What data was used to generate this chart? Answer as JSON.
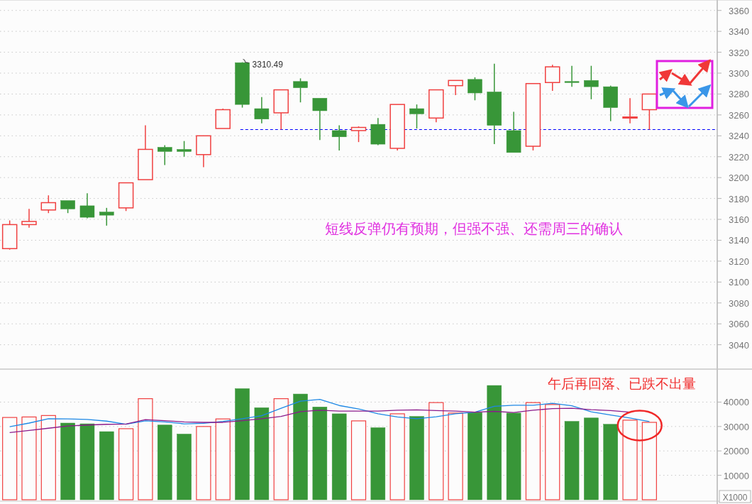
{
  "chart_data": [
    {
      "type": "candlestick",
      "categories": [
        null,
        null,
        null,
        null,
        null,
        null,
        null,
        null,
        null,
        null,
        null,
        null,
        null,
        null,
        null,
        null,
        null,
        null,
        null,
        null,
        null,
        null,
        null,
        null,
        null,
        null,
        null,
        null,
        null,
        null,
        null,
        null,
        null,
        null,
        null,
        null,
        null
      ],
      "ohlc": [
        [
          3132,
          3159,
          3131,
          3155
        ],
        [
          3155,
          3170,
          3152,
          3158
        ],
        [
          3169,
          3183,
          3166,
          3176
        ],
        [
          3178,
          3178,
          3166,
          3170
        ],
        [
          3173,
          3185,
          3161,
          3162
        ],
        [
          3167,
          3171,
          3154,
          3164
        ],
        [
          3171,
          3195,
          3168,
          3195
        ],
        [
          3198,
          3250,
          3198,
          3227
        ],
        [
          3229,
          3231,
          3212,
          3225
        ],
        [
          3227,
          3235,
          3220,
          3225
        ],
        [
          3222,
          3240,
          3210,
          3240
        ],
        [
          3247,
          3266,
          3247,
          3265
        ],
        [
          3310,
          3310.49,
          3267,
          3270
        ],
        [
          3266,
          3277,
          3252,
          3256
        ],
        [
          3262,
          3284,
          3246,
          3284
        ],
        [
          3292,
          3295,
          3272,
          3286
        ],
        [
          3276,
          3276,
          3236,
          3264
        ],
        [
          3245,
          3250,
          3226,
          3239
        ],
        [
          3245,
          3249,
          3234,
          3248
        ],
        [
          3251,
          3257,
          3231,
          3232
        ],
        [
          3228,
          3270,
          3226,
          3270
        ],
        [
          3266,
          3270,
          3247,
          3261
        ],
        [
          3257,
          3284,
          3253,
          3284
        ],
        [
          3288,
          3293,
          3279,
          3293
        ],
        [
          3294,
          3296,
          3274,
          3281
        ],
        [
          3282,
          3309,
          3232,
          3250
        ],
        [
          3245,
          3263,
          3224,
          3224
        ],
        [
          3230,
          3290,
          3226,
          3290
        ],
        [
          3291,
          3308,
          3283,
          3306
        ],
        [
          3292,
          3307,
          3287,
          3291
        ],
        [
          3293,
          3307,
          3275,
          3287
        ],
        [
          3287,
          3288,
          3254,
          3267
        ],
        [
          3257,
          3276,
          3252,
          3258
        ],
        [
          3265,
          3280,
          3246,
          3280
        ],
        null,
        null,
        null
      ],
      "colors": [
        "#f04040",
        "#f04040",
        "#f04040",
        "#389638",
        "#389638",
        "#389638",
        "#f04040",
        "#f04040",
        "#389638",
        "#389638",
        "#f04040",
        "#f04040",
        "#389638",
        "#389638",
        "#f04040",
        "#389638",
        "#389638",
        "#389638",
        "#f04040",
        "#389638",
        "#f04040",
        "#389638",
        "#f04040",
        "#f04040",
        "#389638",
        "#389638",
        "#389638",
        "#f04040",
        "#f04040",
        "#389638",
        "#389638",
        "#389638",
        "#f04040",
        "#f04040",
        null,
        null,
        null
      ],
      "ylim": [
        3018,
        3370
      ],
      "yticks": [
        3040,
        3060,
        3080,
        3100,
        3120,
        3140,
        3160,
        3180,
        3200,
        3220,
        3240,
        3260,
        3280,
        3300,
        3320,
        3340,
        3360
      ],
      "grid": "y",
      "tick_labels": "y",
      "ref_lines": [
        {
          "axis": "y",
          "value": 3246,
          "color": "#0000ff",
          "line_style": "dashed"
        }
      ],
      "annotations": [
        "3310.49",
        "短线反弹仍有预期，但强不强、还需周三的确认"
      ]
    },
    {
      "type": "bar",
      "categories": [
        null,
        null,
        null,
        null,
        null,
        null,
        null,
        null,
        null,
        null,
        null,
        null,
        null,
        null,
        null,
        null,
        null,
        null,
        null,
        null,
        null,
        null,
        null,
        null,
        null,
        null,
        null,
        null,
        null,
        null,
        null,
        null,
        null,
        null,
        null,
        null,
        null
      ],
      "series": [
        {
          "type": "bar",
          "values": [
            33700,
            33900,
            34500,
            31400,
            31100,
            27900,
            29100,
            41400,
            30600,
            26900,
            30000,
            33100,
            45500,
            37700,
            41400,
            43300,
            38000,
            35200,
            32300,
            29500,
            35200,
            34100,
            39800,
            35500,
            35700,
            46800,
            35500,
            39800,
            39000,
            32100,
            33500,
            30900,
            32600,
            31700,
            null,
            null,
            null
          ],
          "colors": [
            "#f04040",
            "#f04040",
            "#f04040",
            "#389638",
            "#389638",
            "#389638",
            "#f04040",
            "#f04040",
            "#389638",
            "#389638",
            "#f04040",
            "#f04040",
            "#389638",
            "#389638",
            "#f04040",
            "#389638",
            "#389638",
            "#389638",
            "#f04040",
            "#389638",
            "#f04040",
            "#389638",
            "#f04040",
            "#f04040",
            "#389638",
            "#389638",
            "#389638",
            "#f04040",
            "#f04040",
            "#389638",
            "#389638",
            "#389638",
            "#f04040",
            "#f04040",
            null,
            null,
            null
          ]
        },
        {
          "type": "line",
          "color": "#1e88e5",
          "values": [
            29900,
            31400,
            33200,
            33100,
            32900,
            32200,
            30900,
            32300,
            31900,
            31100,
            31300,
            32100,
            33200,
            34400,
            37500,
            40400,
            41100,
            38600,
            37200,
            35200,
            33900,
            33200,
            34000,
            35200,
            35900,
            38300,
            38700,
            38700,
            39500,
            38500,
            36000,
            34700,
            33500,
            32000,
            null,
            null,
            null
          ]
        },
        {
          "type": "line",
          "color": "#8b1a8b",
          "values": [
            27500,
            28400,
            29300,
            30200,
            30600,
            30900,
            31000,
            32800,
            32400,
            31900,
            31700,
            31700,
            32400,
            33200,
            34100,
            36100,
            36700,
            36300,
            36300,
            36300,
            36700,
            36800,
            36500,
            36300,
            35900,
            36200,
            35700,
            36700,
            37300,
            37500,
            36900,
            36500,
            35900,
            null,
            null,
            null,
            null
          ]
        }
      ],
      "ylim": [
        0,
        53500
      ],
      "yticks": [
        10000,
        20000,
        30000,
        40000
      ],
      "grid": "y",
      "tick_labels": "y",
      "ylabel": "X1000",
      "annotations": [
        "午后再回落、已跌不出量"
      ]
    }
  ]
}
